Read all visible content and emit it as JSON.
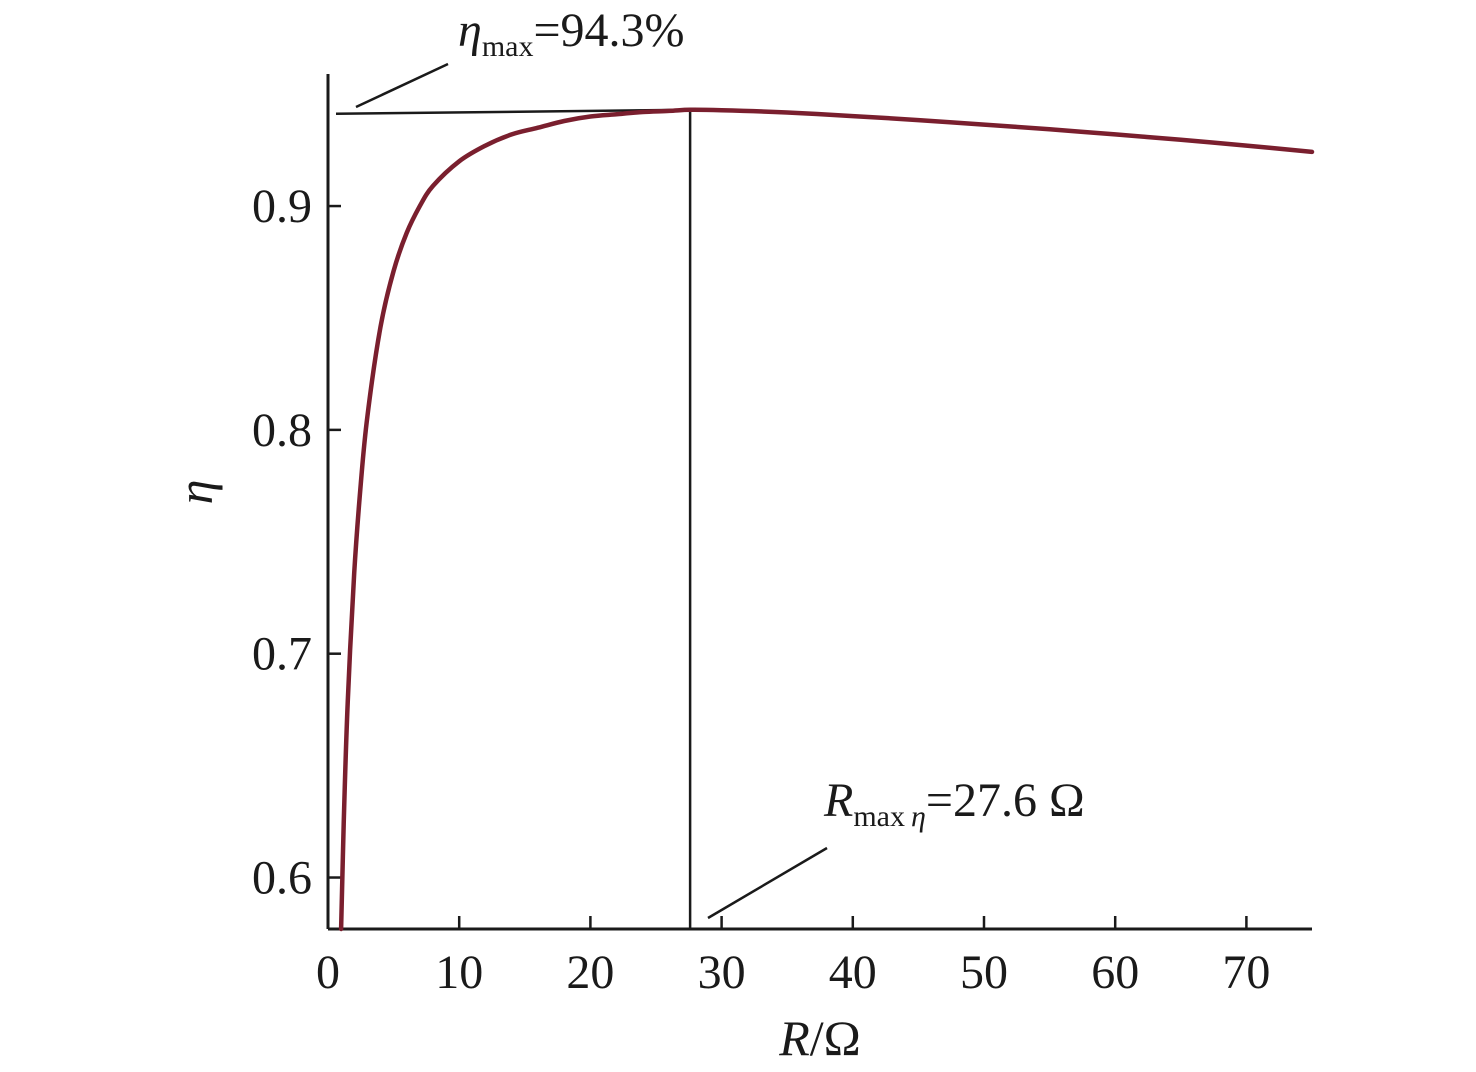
{
  "chart_data": {
    "type": "line",
    "title": "",
    "xlabel": {
      "var": "R",
      "unit": "Ω"
    },
    "ylabel": "η",
    "xlim": [
      0,
      75
    ],
    "ylim": [
      0.577,
      0.959
    ],
    "xticks": [
      0,
      10,
      20,
      30,
      40,
      50,
      60,
      70
    ],
    "xtick_labels": [
      "0",
      "10",
      "20",
      "30",
      "40",
      "50",
      "60",
      "70"
    ],
    "yticks": [
      0.6,
      0.7,
      0.8,
      0.9
    ],
    "ytick_labels": [
      "0.6",
      "0.7",
      "0.8",
      "0.9"
    ],
    "grid": false,
    "series": [
      {
        "color": "#7a1f2e",
        "x": [
          1.0,
          1.2,
          1.5,
          2.0,
          2.5,
          3.0,
          4.0,
          5.0,
          6.0,
          7.0,
          8.0,
          10.0,
          12.0,
          14.0,
          16.0,
          18.0,
          20.0,
          22.0,
          24.0,
          26.0,
          27.6,
          30.0,
          35.0,
          40.0,
          45.0,
          50.0,
          55.0,
          60.0,
          65.0,
          70.0,
          75.0
        ],
        "y": [
          0.577,
          0.624,
          0.678,
          0.736,
          0.776,
          0.806,
          0.846,
          0.871,
          0.888,
          0.9,
          0.909,
          0.92,
          0.927,
          0.932,
          0.935,
          0.938,
          0.94,
          0.941,
          0.942,
          0.9425,
          0.943,
          0.9428,
          0.9418,
          0.9402,
          0.9384,
          0.9364,
          0.9343,
          0.932,
          0.9296,
          0.927,
          0.9242
        ]
      }
    ],
    "annotations": [
      {
        "name": "eta-max",
        "symbol": "η",
        "sub": "max",
        "text": "=94.3%",
        "x": 27.6,
        "y": 0.943
      },
      {
        "name": "r-max-eta",
        "symbol": "R",
        "sub": "max",
        "sub_symbol": "η",
        "text": "=27.6 Ω",
        "x": 27.6
      }
    ]
  }
}
